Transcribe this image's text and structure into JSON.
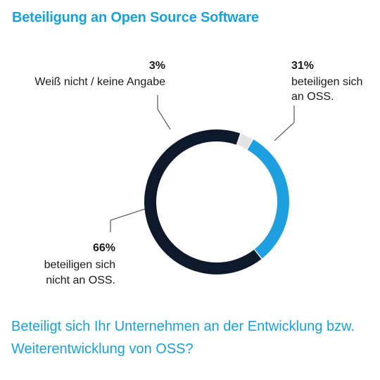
{
  "title": "Beteiligung an Open Source Software",
  "question": "Beteiligt sich Ihr Unternehmen an der Entwicklung bzw. Weiterentwicklung von OSS?",
  "colors": {
    "title": "#1aa0dc",
    "question": "#1aa0dc",
    "text": "#1a1a1a",
    "leader": "#444444"
  },
  "chart_data": {
    "type": "pie",
    "variant": "donut",
    "title": "Beteiligung an Open Source Software",
    "slices": [
      {
        "pct_label": "31%",
        "value": 31,
        "label_lines": [
          "beteiligen sich",
          "an OSS."
        ],
        "color": "#1e9fe0"
      },
      {
        "pct_label": "66%",
        "value": 66,
        "label_lines": [
          "beteiligen sich",
          "nicht an OSS."
        ],
        "color": "#0e1a2b"
      },
      {
        "pct_label": "3%",
        "value": 3,
        "label_lines": [
          "Weiß nicht / keine Angabe"
        ],
        "color": "#e4e4e4"
      }
    ]
  }
}
